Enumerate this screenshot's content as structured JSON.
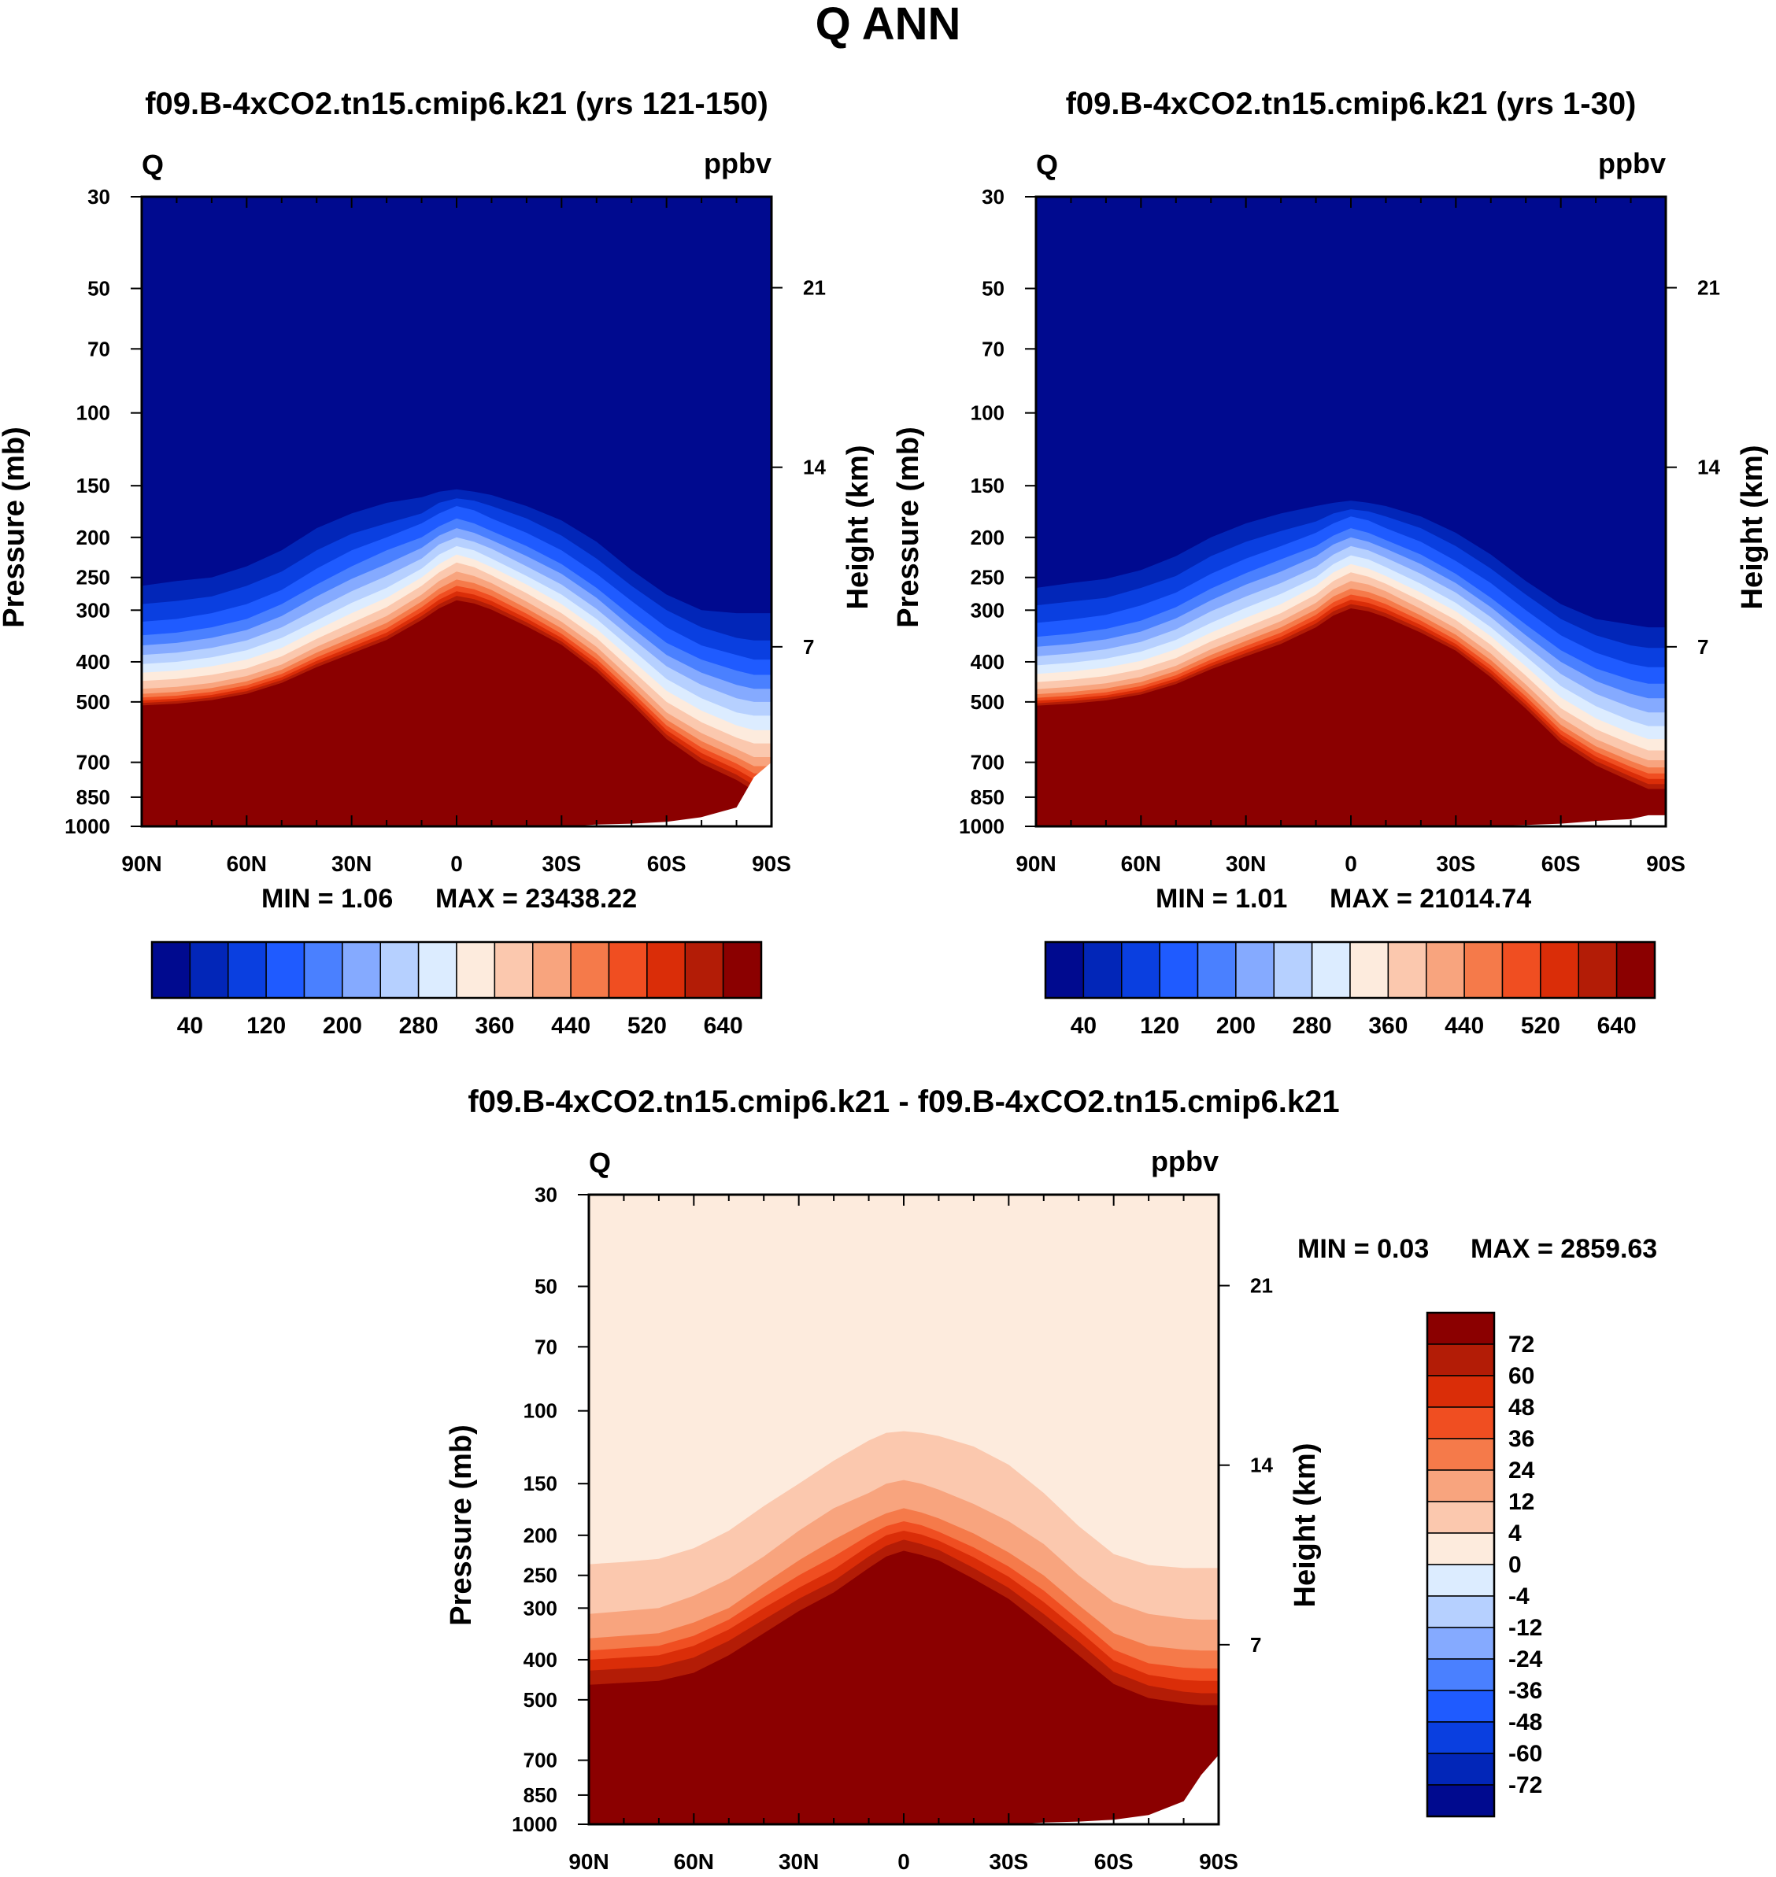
{
  "figure": {
    "title": "Q ANN"
  },
  "colors": {
    "main_scale": [
      "#000a8f",
      "#0226b8",
      "#0a3fe0",
      "#1f5bff",
      "#4a80ff",
      "#85aaff",
      "#b6d0ff",
      "#dcecff",
      "#fdebdd",
      "#fbc8ae",
      "#f8a47e",
      "#f57a4a",
      "#f04e21",
      "#da2d08",
      "#b31c06",
      "#8b0000"
    ],
    "diff_scale": [
      "#000a8f",
      "#0226b8",
      "#0a3fe0",
      "#1f5bff",
      "#4a80ff",
      "#85aaff",
      "#b6d0ff",
      "#dcecff",
      "#fdebdd",
      "#fbc8ae",
      "#f8a47e",
      "#f57a4a",
      "#f04e21",
      "#da2d08",
      "#b31c06",
      "#8b0000"
    ]
  },
  "chart_data": [
    {
      "id": "panel1",
      "type": "heatmap",
      "title": "f09.B-4xCO2.tn15.cmip6.k21 (yrs 121-150)",
      "variable": "Q",
      "units": "ppbv",
      "ylabel": "Pressure (mb)",
      "y2label": "Height (km)",
      "x_ticks": [
        "90N",
        "60N",
        "30N",
        "0",
        "30S",
        "60S",
        "90S"
      ],
      "latitudes": [
        90,
        80,
        70,
        60,
        50,
        40,
        30,
        20,
        10,
        5,
        0,
        -5,
        -10,
        -20,
        -30,
        -40,
        -50,
        -60,
        -70,
        -80,
        -85,
        -90
      ],
      "y_ticks": [
        30,
        50,
        70,
        100,
        150,
        200,
        250,
        300,
        400,
        500,
        700,
        850,
        1000
      ],
      "y2_ticks": [
        21,
        14,
        7
      ],
      "ylim": [
        30,
        1000
      ],
      "level_transitions_mb": [
        [
          262,
          255,
          250,
          235,
          215,
          190,
          175,
          165,
          160,
          155,
          153,
          155,
          158,
          168,
          182,
          205,
          240,
          275,
          300,
          305,
          305,
          305
        ],
        [
          290,
          285,
          278,
          262,
          242,
          215,
          196,
          185,
          175,
          165,
          161,
          163,
          168,
          180,
          198,
          225,
          262,
          300,
          330,
          350,
          355,
          355
        ],
        [
          320,
          315,
          305,
          290,
          268,
          238,
          215,
          200,
          185,
          175,
          168,
          172,
          180,
          195,
          215,
          245,
          285,
          330,
          365,
          385,
          395,
          395
        ],
        [
          345,
          340,
          330,
          315,
          290,
          260,
          235,
          215,
          200,
          188,
          180,
          185,
          193,
          210,
          232,
          265,
          310,
          360,
          395,
          420,
          430,
          430
        ],
        [
          365,
          360,
          350,
          335,
          310,
          278,
          252,
          232,
          212,
          198,
          190,
          195,
          203,
          222,
          245,
          280,
          330,
          385,
          425,
          455,
          465,
          465
        ],
        [
          385,
          380,
          370,
          355,
          330,
          298,
          270,
          248,
          225,
          208,
          200,
          205,
          213,
          235,
          260,
          298,
          350,
          410,
          455,
          490,
          500,
          500
        ],
        [
          405,
          400,
          390,
          375,
          350,
          318,
          288,
          265,
          238,
          220,
          210,
          215,
          225,
          248,
          275,
          315,
          372,
          440,
          490,
          530,
          540,
          540
        ],
        [
          425,
          420,
          410,
          395,
          370,
          335,
          305,
          280,
          250,
          232,
          220,
          226,
          236,
          260,
          290,
          333,
          395,
          470,
          525,
          570,
          585,
          585
        ],
        [
          445,
          440,
          430,
          415,
          388,
          352,
          322,
          295,
          262,
          243,
          230,
          236,
          247,
          273,
          305,
          350,
          418,
          500,
          560,
          610,
          630,
          630
        ],
        [
          465,
          460,
          450,
          433,
          406,
          368,
          338,
          310,
          275,
          255,
          242,
          248,
          258,
          286,
          320,
          368,
          440,
          530,
          595,
          650,
          680,
          680
        ],
        [
          478,
          473,
          463,
          446,
          418,
          380,
          350,
          322,
          286,
          266,
          253,
          258,
          268,
          297,
          332,
          382,
          458,
          552,
          622,
          680,
          715,
          715
        ],
        [
          488,
          483,
          473,
          456,
          428,
          390,
          360,
          332,
          295,
          275,
          262,
          267,
          277,
          306,
          342,
          394,
          472,
          570,
          645,
          705,
          745,
          745
        ],
        [
          496,
          491,
          481,
          464,
          436,
          398,
          368,
          340,
          303,
          283,
          270,
          275,
          285,
          314,
          350,
          404,
          484,
          585,
          665,
          728,
          770,
          770
        ],
        [
          503,
          498,
          488,
          471,
          443,
          405,
          375,
          347,
          310,
          290,
          277,
          282,
          292,
          321,
          357,
          413,
          495,
          600,
          685,
          750,
          795,
          795
        ],
        [
          510,
          505,
          495,
          478,
          450,
          412,
          382,
          354,
          317,
          297,
          284,
          289,
          299,
          328,
          364,
          422,
          506,
          615,
          705,
          772,
          820,
          820
        ]
      ],
      "surface_mb": [
        1000,
        1000,
        1000,
        1000,
        1000,
        1000,
        1000,
        1000,
        1000,
        1000,
        1000,
        1000,
        1000,
        1000,
        1000,
        990,
        985,
        975,
        950,
        900,
        760,
        700
      ],
      "min": "MIN =    1.06",
      "max": "MAX = 23438.22",
      "colorbar_labels": [
        "40",
        "120",
        "200",
        "280",
        "360",
        "440",
        "520",
        "640"
      ]
    },
    {
      "id": "panel2",
      "type": "heatmap",
      "title": "f09.B-4xCO2.tn15.cmip6.k21 (yrs 1-30)",
      "variable": "Q",
      "units": "ppbv",
      "ylabel": "Pressure (mb)",
      "y2label": "Height (km)",
      "x_ticks": [
        "90N",
        "60N",
        "30N",
        "0",
        "30S",
        "60S",
        "90S"
      ],
      "latitudes": [
        90,
        80,
        70,
        60,
        50,
        40,
        30,
        20,
        10,
        5,
        0,
        -5,
        -10,
        -20,
        -30,
        -40,
        -50,
        -60,
        -70,
        -80,
        -85,
        -90
      ],
      "y_ticks": [
        30,
        50,
        70,
        100,
        150,
        200,
        250,
        300,
        400,
        500,
        700,
        850,
        1000
      ],
      "y2_ticks": [
        21,
        14,
        7
      ],
      "ylim": [
        30,
        1000
      ],
      "level_transitions_mb": [
        [
          265,
          258,
          252,
          240,
          222,
          200,
          185,
          175,
          168,
          165,
          163,
          165,
          168,
          178,
          195,
          220,
          255,
          290,
          315,
          325,
          330,
          330
        ],
        [
          292,
          286,
          280,
          265,
          248,
          222,
          205,
          193,
          183,
          175,
          171,
          173,
          178,
          190,
          210,
          238,
          275,
          315,
          345,
          365,
          370,
          370
        ],
        [
          322,
          316,
          308,
          292,
          272,
          245,
          225,
          210,
          195,
          185,
          178,
          182,
          190,
          205,
          228,
          258,
          300,
          345,
          380,
          405,
          412,
          412
        ],
        [
          348,
          342,
          333,
          318,
          295,
          266,
          244,
          226,
          210,
          198,
          190,
          195,
          203,
          220,
          245,
          280,
          325,
          375,
          415,
          442,
          452,
          452
        ],
        [
          368,
          362,
          353,
          338,
          314,
          284,
          260,
          242,
          222,
          208,
          200,
          205,
          213,
          232,
          258,
          295,
          345,
          400,
          445,
          478,
          490,
          490
        ],
        [
          388,
          382,
          373,
          358,
          334,
          302,
          278,
          258,
          236,
          220,
          210,
          215,
          224,
          245,
          272,
          312,
          366,
          428,
          478,
          515,
          530,
          530
        ],
        [
          408,
          402,
          393,
          378,
          354,
          322,
          296,
          274,
          250,
          232,
          221,
          226,
          236,
          259,
          288,
          330,
          388,
          458,
          512,
          555,
          572,
          572
        ],
        [
          428,
          422,
          413,
          398,
          373,
          340,
          313,
          290,
          262,
          243,
          232,
          238,
          248,
          272,
          302,
          347,
          410,
          488,
          548,
          595,
          615,
          615
        ],
        [
          448,
          442,
          433,
          417,
          392,
          357,
          330,
          305,
          275,
          255,
          243,
          249,
          259,
          285,
          317,
          364,
          432,
          518,
          582,
          632,
          655,
          655
        ],
        [
          466,
          460,
          451,
          435,
          409,
          373,
          345,
          319,
          288,
          267,
          255,
          260,
          270,
          298,
          332,
          382,
          454,
          546,
          615,
          668,
          692,
          692
        ],
        [
          479,
          473,
          464,
          448,
          421,
          385,
          356,
          330,
          299,
          278,
          266,
          271,
          281,
          309,
          344,
          396,
          471,
          568,
          640,
          695,
          720,
          720
        ],
        [
          489,
          483,
          474,
          458,
          431,
          395,
          366,
          340,
          308,
          287,
          275,
          280,
          290,
          318,
          354,
          408,
          485,
          585,
          660,
          718,
          745,
          745
        ],
        [
          497,
          491,
          482,
          466,
          439,
          403,
          374,
          348,
          316,
          295,
          283,
          288,
          298,
          326,
          362,
          418,
          497,
          600,
          678,
          738,
          768,
          768
        ],
        [
          504,
          498,
          489,
          473,
          446,
          410,
          381,
          355,
          323,
          302,
          290,
          295,
          305,
          333,
          369,
          427,
          508,
          614,
          695,
          758,
          790,
          790
        ],
        [
          511,
          505,
          496,
          480,
          453,
          417,
          388,
          362,
          330,
          309,
          297,
          302,
          312,
          340,
          376,
          436,
          519,
          628,
          712,
          778,
          812,
          812
        ]
      ],
      "surface_mb": [
        1000,
        1000,
        1000,
        1000,
        1000,
        1000,
        1000,
        1000,
        1000,
        1000,
        1000,
        1000,
        1000,
        1000,
        1000,
        995,
        992,
        985,
        970,
        960,
        940,
        940
      ],
      "min": "MIN =    1.01",
      "max": "MAX = 21014.74",
      "colorbar_labels": [
        "40",
        "120",
        "200",
        "280",
        "360",
        "440",
        "520",
        "640"
      ]
    },
    {
      "id": "panel3",
      "type": "heatmap",
      "title": "f09.B-4xCO2.tn15.cmip6.k21 - f09.B-4xCO2.tn15.cmip6.k21",
      "variable": "Q",
      "units": "ppbv",
      "ylabel": "Pressure (mb)",
      "y2label": "Height (km)",
      "x_ticks": [
        "90N",
        "60N",
        "30N",
        "0",
        "30S",
        "60S",
        "90S"
      ],
      "latitudes": [
        90,
        80,
        70,
        60,
        50,
        40,
        30,
        20,
        10,
        5,
        0,
        -5,
        -10,
        -20,
        -30,
        -40,
        -50,
        -60,
        -70,
        -80,
        -85,
        -90
      ],
      "y_ticks": [
        30,
        50,
        70,
        100,
        150,
        200,
        250,
        300,
        400,
        500,
        700,
        850,
        1000
      ],
      "y2_ticks": [
        21,
        14,
        7
      ],
      "ylim": [
        30,
        1000
      ],
      "diff_levels_top_bottom": [
        4,
        12,
        24,
        36,
        48,
        60,
        72
      ],
      "level_transitions_mb": [
        [
          235,
          232,
          228,
          215,
          195,
          170,
          150,
          132,
          118,
          113,
          112,
          113,
          115,
          122,
          135,
          158,
          190,
          222,
          236,
          240,
          240,
          240
        ],
        [
          310,
          305,
          300,
          280,
          255,
          225,
          195,
          172,
          158,
          150,
          147,
          150,
          155,
          168,
          185,
          210,
          250,
          290,
          310,
          318,
          320,
          320
        ],
        [
          355,
          350,
          345,
          325,
          300,
          262,
          230,
          205,
          185,
          177,
          172,
          176,
          182,
          198,
          220,
          250,
          295,
          345,
          370,
          378,
          380,
          380
        ],
        [
          380,
          375,
          370,
          350,
          320,
          282,
          250,
          225,
          200,
          190,
          185,
          189,
          196,
          214,
          238,
          272,
          320,
          378,
          408,
          418,
          420,
          420
        ],
        [
          400,
          395,
          390,
          370,
          338,
          300,
          268,
          242,
          212,
          200,
          195,
          199,
          206,
          226,
          252,
          290,
          340,
          402,
          435,
          448,
          450,
          450
        ],
        [
          425,
          420,
          415,
          395,
          360,
          320,
          285,
          258,
          225,
          212,
          205,
          210,
          217,
          240,
          268,
          310,
          362,
          428,
          462,
          478,
          482,
          482
        ],
        [
          460,
          455,
          450,
          430,
          390,
          345,
          305,
          275,
          240,
          225,
          218,
          223,
          230,
          255,
          285,
          332,
          390,
          458,
          495,
          510,
          515,
          515
        ]
      ],
      "surface_mb": [
        1000,
        1000,
        1000,
        1000,
        1000,
        1000,
        1000,
        1000,
        1000,
        1000,
        1000,
        1000,
        1000,
        1000,
        1000,
        990,
        985,
        975,
        950,
        880,
        760,
        680
      ],
      "min": "MIN =    0.03",
      "max": "MAX = 2859.63",
      "colorbar_labels": [
        "72",
        "60",
        "48",
        "36",
        "24",
        "12",
        "4",
        "0",
        "-4",
        "-12",
        "-24",
        "-36",
        "-48",
        "-60",
        "-72"
      ]
    }
  ]
}
